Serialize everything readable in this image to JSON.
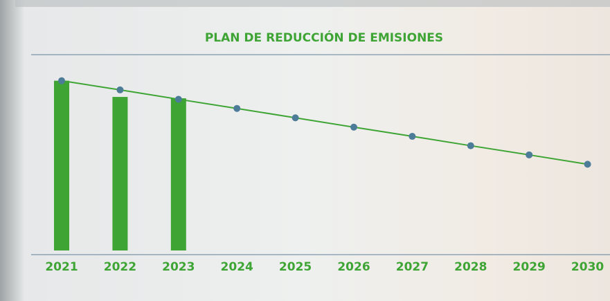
{
  "chart_data": {
    "type": "combo",
    "title": "PLAN DE REDUCCIÓN DE EMISIONES",
    "categories": [
      "2021",
      "2022",
      "2023",
      "2024",
      "2025",
      "2026",
      "2027",
      "2028",
      "2029",
      "2030"
    ],
    "series": [
      {
        "type": "bar",
        "color": "#3ea535",
        "values": [
          87,
          78.7,
          78,
          null,
          null,
          null,
          null,
          null,
          null,
          null
        ]
      },
      {
        "type": "line",
        "color": "#3ea535",
        "marker_color": "#4d7c99",
        "values": [
          87,
          82.3,
          77.5,
          72.8,
          68,
          63.2,
          58.5,
          53.7,
          49,
          44.2
        ]
      }
    ],
    "ylim": [
      0,
      100
    ]
  }
}
